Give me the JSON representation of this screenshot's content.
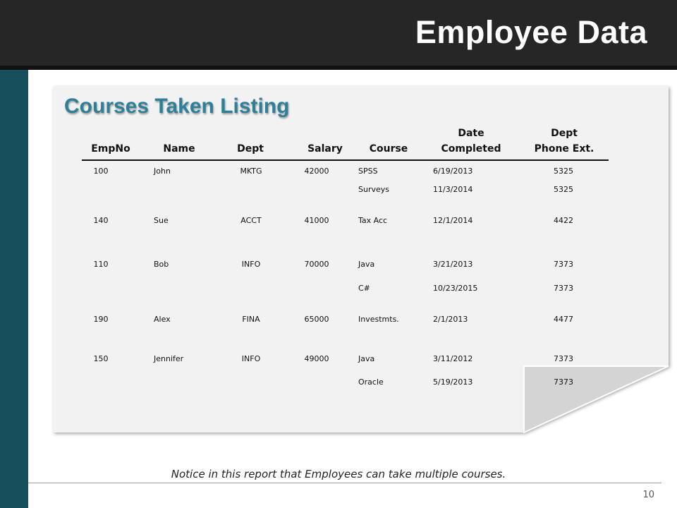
{
  "slide": {
    "title": "Employee Data",
    "heading": "Courses Taken Listing",
    "note": "Notice in this report that Employees can take multiple courses.",
    "page_number": "10"
  },
  "table": {
    "headers": {
      "empno": "EmpNo",
      "name": "Name",
      "dept": "Dept",
      "salary": "Salary",
      "course": "Course",
      "date_completed": [
        "Date",
        "Completed"
      ],
      "dept_phone": [
        "Dept",
        "Phone Ext."
      ]
    },
    "rows": [
      {
        "empno": "100",
        "name": "John",
        "dept": "MKTG",
        "salary": "42000",
        "course": "SPSS",
        "date": "6/19/2013",
        "phone": "5325"
      },
      {
        "empno": "",
        "name": "",
        "dept": "",
        "salary": "",
        "course": "Surveys",
        "date": "11/3/2014",
        "phone": "5325"
      },
      {
        "empno": "140",
        "name": "Sue",
        "dept": "ACCT",
        "salary": "41000",
        "course": "Tax Acc",
        "date": "12/1/2014",
        "phone": "4422"
      },
      {
        "empno": "110",
        "name": "Bob",
        "dept": "INFO",
        "salary": "70000",
        "course": "Java",
        "date": "3/21/2013",
        "phone": "7373"
      },
      {
        "empno": "",
        "name": "",
        "dept": "",
        "salary": "",
        "course": "C#",
        "date": "10/23/2015",
        "phone": "7373"
      },
      {
        "empno": "190",
        "name": "Alex",
        "dept": "FINA",
        "salary": "65000",
        "course": "Investmts.",
        "date": "2/1/2013",
        "phone": "4477"
      },
      {
        "empno": "150",
        "name": "Jennifer",
        "dept": "INFO",
        "salary": "49000",
        "course": "Java",
        "date": "3/11/2012",
        "phone": "7373"
      },
      {
        "empno": "",
        "name": "",
        "dept": "",
        "salary": "",
        "course": "Oracle",
        "date": "5/19/2013",
        "phone": "7373"
      }
    ]
  },
  "colors": {
    "header_bar": "#262626",
    "side_bar": "#17505c",
    "heading": "#2e7f97",
    "paper": "#f2f2f2"
  }
}
